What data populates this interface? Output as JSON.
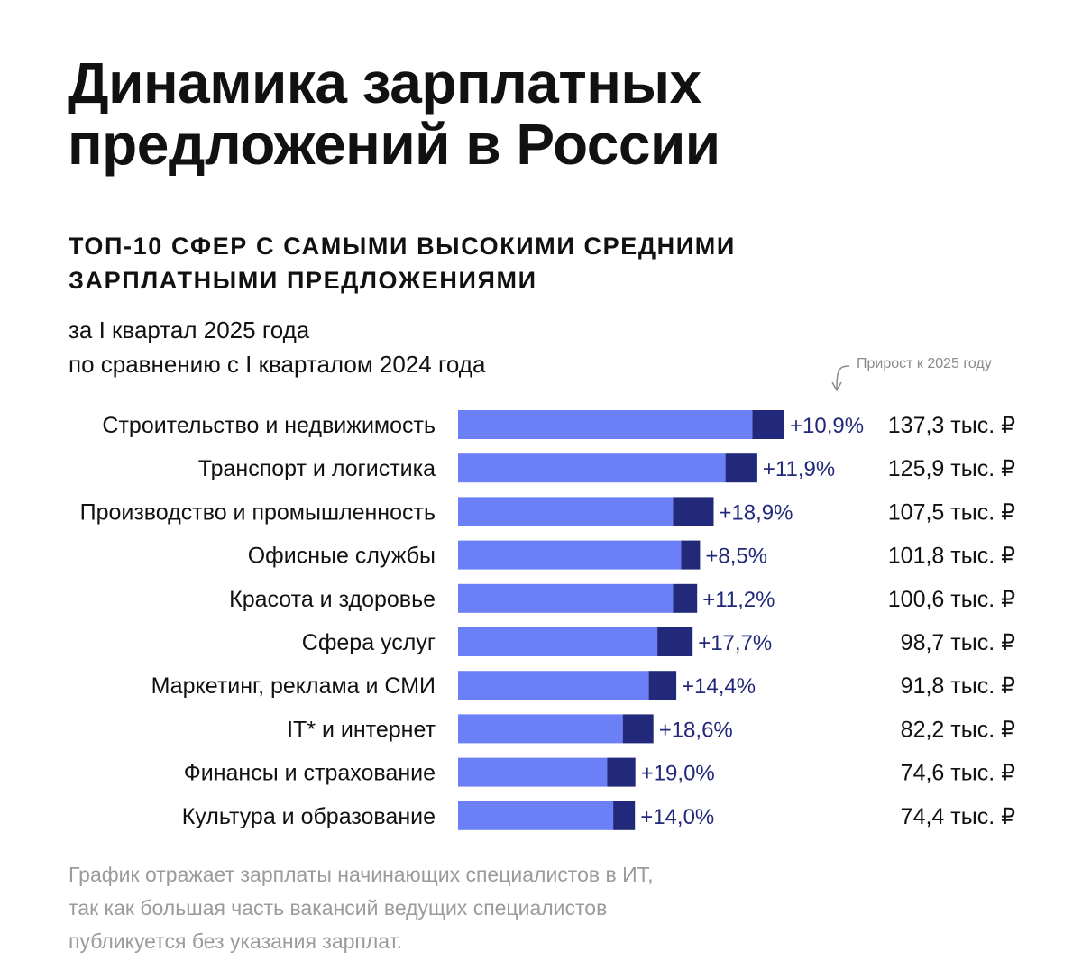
{
  "title_lines": [
    "Динамика зарплатных",
    "предложений в России"
  ],
  "subtitle_lines": [
    "ТОП-10 СФЕР С САМЫМИ ВЫСОКИМИ СРЕДНИМИ",
    "ЗАРПЛАТНЫМИ ПРЕДЛОЖЕНИЯМИ"
  ],
  "period_lines": [
    "за I квартал 2025 года",
    "по сравнению с I кварталом 2024 года"
  ],
  "growth_note": "Прирост к 2025 году",
  "footnote_lines": [
    "График отражает зарплаты начинающих специалистов в ИТ,",
    "так как большая часть вакансий ведущих специалистов",
    "публикуется без указания зарплат."
  ],
  "colors": {
    "base": "#6b80f7",
    "growth": "#23297a",
    "growth_text": "#23297a",
    "text": "#111111",
    "muted": "#9b9b9b"
  },
  "chart_data": {
    "type": "bar",
    "orientation": "horizontal",
    "stacked": true,
    "title": "Динамика зарплатных предложений в России",
    "subtitle": "ТОП-10 СФЕР С САМЫМИ ВЫСОКИМИ СРЕДНИМИ ЗАРПЛАТНЫМИ ПРЕДЛОЖЕНИЯМИ",
    "unit": "тыс. ₽",
    "categories": [
      "Строительство и недвижимость",
      "Транспорт и логистика",
      "Производство и промышленность",
      "Офисные службы",
      "Красота и здоровье",
      "Сфера услуг",
      "Маркетинг, реклама и СМИ",
      "IT* и интернет",
      "Финансы и страхование",
      "Культура и образование"
    ],
    "values": [
      137.3,
      125.9,
      107.5,
      101.8,
      100.6,
      98.7,
      91.8,
      82.2,
      74.6,
      74.4
    ],
    "growth_pct": [
      10.9,
      11.9,
      18.9,
      8.5,
      11.2,
      17.7,
      14.4,
      18.6,
      19.0,
      14.0
    ],
    "growth_labels": [
      "+10,9%",
      "+11,9%",
      "+18,9%",
      "+8,5%",
      "+11,2%",
      "+17,7%",
      "+14,4%",
      "+18,6%",
      "+19,0%",
      "+14,0%"
    ],
    "value_labels": [
      "137,3 тыс. ₽",
      "125,9 тыс. ₽",
      "107,5 тыс. ₽",
      "101,8 тыс. ₽",
      "100,6 тыс. ₽",
      "98,7 тыс. ₽",
      "91,8 тыс. ₽",
      "82,2 тыс. ₽",
      "74,6 тыс. ₽",
      "74,4 тыс. ₽"
    ],
    "series": [
      {
        "name": "I квартал 2024",
        "role": "base"
      },
      {
        "name": "Прирост к 2025 году",
        "role": "growth"
      }
    ],
    "xlabel": "",
    "ylabel": "",
    "grid": false,
    "legend": "top-right"
  }
}
